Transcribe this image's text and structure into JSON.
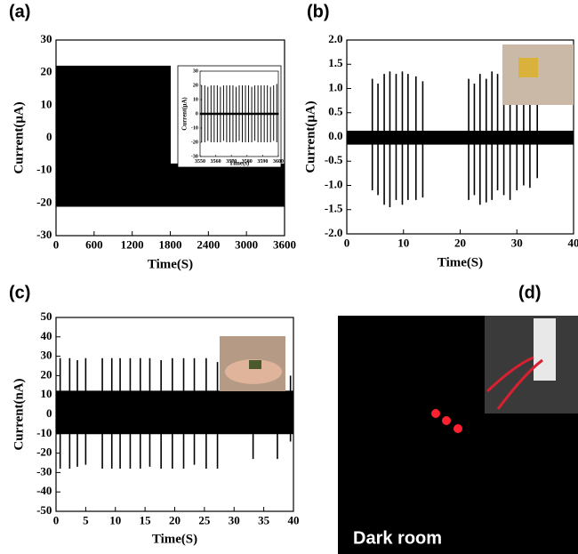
{
  "chart_data": [
    {
      "type": "envelope",
      "panel": "(a)",
      "xlabel": "Time(S)",
      "ylabel": "Current(μA)",
      "x": [
        0,
        1800,
        1800,
        3600
      ],
      "upper": [
        22,
        22,
        -8,
        -8
      ],
      "lower": [
        -21,
        -21,
        -21,
        -21
      ],
      "xlim": [
        0,
        3600
      ],
      "ylim": [
        -30,
        30
      ],
      "xticks": [
        0,
        600,
        1200,
        1800,
        2400,
        3000,
        3600
      ],
      "yticks": [
        -30,
        -20,
        -10,
        0,
        10,
        20,
        30
      ],
      "color": "#000000"
    },
    {
      "type": "spikes",
      "xlabel": "Time(s)",
      "ylabel": "Current(μA)",
      "x": [
        3551,
        3553,
        3555,
        3557,
        3559,
        3561,
        3563,
        3565,
        3567,
        3569,
        3571,
        3573,
        3575,
        3577,
        3579,
        3581,
        3583,
        3585,
        3587,
        3589,
        3591,
        3593,
        3595,
        3597,
        3599
      ],
      "high": [
        20,
        20,
        19,
        20,
        20,
        20,
        19,
        20,
        20,
        20,
        20,
        19,
        20,
        20,
        20,
        20,
        19,
        20,
        20,
        20,
        20,
        20,
        19,
        20,
        21
      ],
      "low": [
        -20,
        -20,
        -19,
        -20,
        -20,
        -20,
        -20,
        -19,
        -20,
        -20,
        -20,
        -20,
        -19,
        -20,
        -20,
        -20,
        -20,
        -19,
        -20,
        -20,
        -20,
        -20,
        -20,
        -19,
        -20
      ],
      "band": {
        "x": [
          3550,
          3600
        ],
        "upper": [
          0.5,
          0.5
        ],
        "lower": [
          -0.5,
          -0.5
        ]
      },
      "xlim": [
        3550,
        3600
      ],
      "ylim": [
        -30,
        30
      ],
      "xticks": [
        3550,
        3560,
        3570,
        3580,
        3590,
        3600
      ],
      "yticks": [
        -30,
        -20,
        -10,
        0,
        10,
        20,
        30
      ],
      "color": "#000000"
    },
    {
      "type": "spikes",
      "panel": "(b)",
      "xlabel": "Time(S)",
      "ylabel": "Current(μA)",
      "x": [
        4.5,
        5.5,
        6.6,
        7.6,
        8.7,
        9.8,
        10.8,
        12.2,
        13.4,
        21.5,
        22.5,
        23.5,
        24.6,
        25.6,
        26.6,
        27.7,
        28.8,
        30,
        31.2,
        32.3,
        33.6
      ],
      "high": [
        1.2,
        1.1,
        1.3,
        1.35,
        1.3,
        1.35,
        1.3,
        1.25,
        1.15,
        1.2,
        1.1,
        1.3,
        1.2,
        1.35,
        1.3,
        1.1,
        1.0,
        1.2,
        1.0,
        0.9,
        0.7
      ],
      "low": [
        -1.1,
        -1.2,
        -1.4,
        -1.45,
        -1.3,
        -1.4,
        -1.3,
        -1.3,
        -1.25,
        -1.3,
        -1.2,
        -1.4,
        -1.35,
        -1.3,
        -1.1,
        -1.2,
        -1.3,
        -1.1,
        -1.0,
        -1.05,
        -0.85
      ],
      "band": {
        "x": [
          0,
          40
        ],
        "upper": [
          0.12,
          0.12
        ],
        "lower": [
          -0.15,
          -0.15
        ]
      },
      "xlim": [
        0,
        40
      ],
      "ylim": [
        -2,
        2
      ],
      "xticks": [
        0,
        10,
        20,
        30,
        40
      ],
      "yticks": [
        {
          "value": -2,
          "label": "-2.0"
        },
        -1.5,
        {
          "value": -1,
          "label": "-1.0"
        },
        -0.5,
        {
          "value": 0,
          "label": "0.0"
        },
        0.5,
        {
          "value": 1,
          "label": "1.0"
        },
        1.5,
        {
          "value": 2,
          "label": "2.0"
        }
      ],
      "color": "#000000"
    },
    {
      "type": "spikes",
      "panel": "(c)",
      "xlabel": "Time(S)",
      "ylabel": "Current(nA)",
      "x": [
        0.7,
        2.3,
        3.6,
        5,
        7.8,
        9.4,
        10.8,
        12.5,
        14.2,
        15.8,
        17.7,
        19.6,
        21.5,
        23.3,
        25.3,
        27.2,
        33.2,
        37.3,
        39.5
      ],
      "high": [
        29,
        29,
        28,
        29,
        29,
        29,
        29,
        29,
        29,
        29,
        28,
        29,
        29,
        29,
        29,
        27,
        13,
        12,
        20
      ],
      "low": [
        -28,
        -28,
        -27,
        -26,
        -28,
        -28,
        -28,
        -28,
        -28,
        -27,
        -28,
        -28,
        -28,
        -26,
        -28,
        -28,
        -23,
        -23,
        -14
      ],
      "band": {
        "x": [
          0,
          40
        ],
        "upper": [
          12,
          12
        ],
        "lower": [
          -10,
          -10
        ]
      },
      "xlim": [
        0,
        40
      ],
      "ylim": [
        -50,
        50
      ],
      "xticks": [
        0,
        5,
        10,
        15,
        20,
        25,
        30,
        35,
        40
      ],
      "yticks": [
        -50,
        -40,
        -30,
        -20,
        -10,
        0,
        10,
        20,
        30,
        40,
        50
      ],
      "color": "#000000"
    }
  ],
  "photo": {
    "panel": "(d)",
    "caption": "Dark room"
  }
}
